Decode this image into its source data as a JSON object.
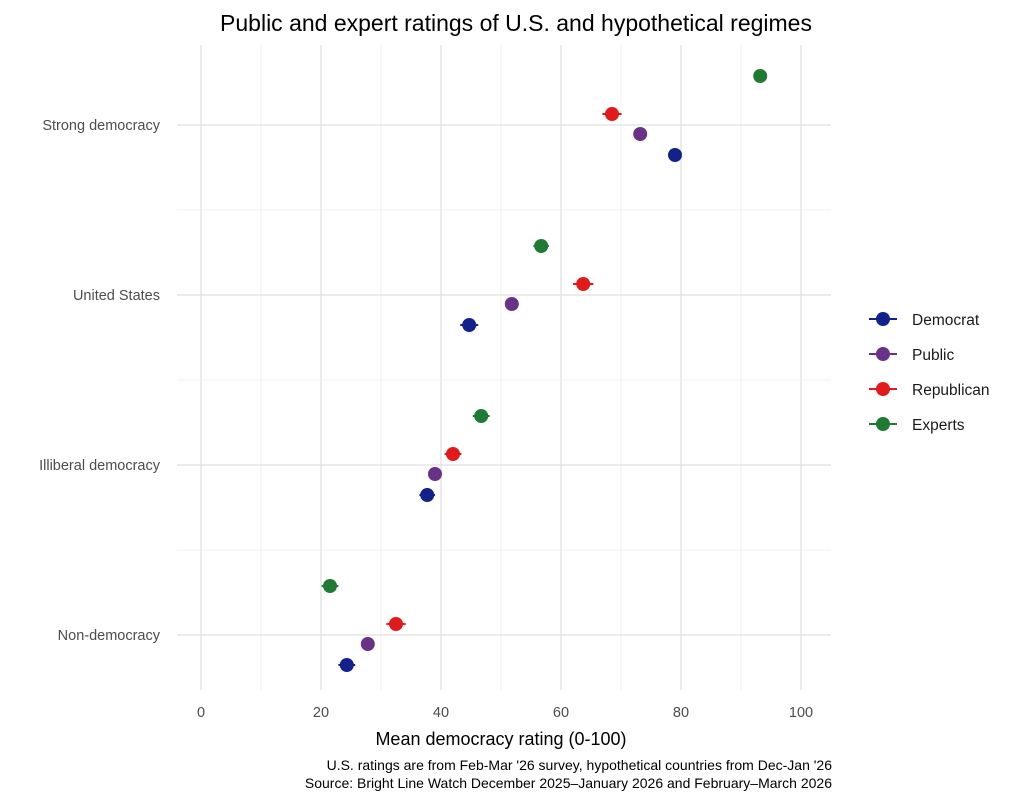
{
  "chart_data": {
    "type": "scatter",
    "title": "Public and expert ratings of U.S. and hypothetical regimes",
    "xlabel": "Mean democracy rating (0-100)",
    "ylabel": "",
    "xlim": [
      -4,
      105
    ],
    "x_ticks": [
      0,
      20,
      40,
      60,
      80,
      100
    ],
    "grid": true,
    "legend_position": "right",
    "categories": [
      "Strong democracy",
      "United States",
      "Illiberal democracy",
      "Non-democracy"
    ],
    "series": [
      {
        "name": "Democrat",
        "color": "#13228a",
        "values": [
          79.0,
          44.7,
          37.7,
          24.3
        ],
        "ci": [
          1.0,
          1.5,
          1.3,
          1.4
        ]
      },
      {
        "name": "Public",
        "color": "#6a3189",
        "values": [
          73.2,
          51.8,
          39.0,
          27.8
        ],
        "ci": [
          0.8,
          0.8,
          0.8,
          0.8
        ]
      },
      {
        "name": "Republican",
        "color": "#e31a1c",
        "values": [
          68.5,
          63.7,
          42.0,
          32.5
        ],
        "ci": [
          1.6,
          1.7,
          1.4,
          1.6
        ]
      },
      {
        "name": "Experts",
        "color": "#1f7a34",
        "values": [
          93.2,
          56.7,
          46.7,
          21.5
        ],
        "ci": [
          0.8,
          1.3,
          1.4,
          1.4
        ]
      }
    ],
    "caption": [
      "U.S. ratings are from Feb-Mar '26 survey, hypothetical countries from Dec-Jan '26",
      "Source: Bright Line Watch December 2025–January 2026 and February–March 2026"
    ]
  }
}
